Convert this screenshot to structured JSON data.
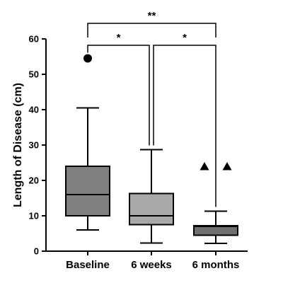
{
  "chart_data": {
    "type": "box",
    "ylabel": "Length of Disease (cm)",
    "ylim": [
      0,
      60
    ],
    "yticks": [
      0,
      10,
      20,
      30,
      40,
      50,
      60
    ],
    "categories": [
      "Baseline",
      "6 weeks",
      "6 months"
    ],
    "colors": [
      "#808080",
      "#a9a9aa",
      "#6f6f6f"
    ],
    "boxes": [
      {
        "category": "Baseline",
        "whisker_low": 6,
        "q1": 10,
        "median": 16,
        "q3": 24,
        "whisker_high": 40.5,
        "outliers": [
          54.5
        ],
        "outlier_marker": "circle"
      },
      {
        "category": "6 weeks",
        "whisker_low": 2.3,
        "q1": 7.5,
        "median": 10,
        "q3": 16.3,
        "whisker_high": 28.7,
        "outliers": [],
        "outlier_marker": "circle"
      },
      {
        "category": "6 months",
        "whisker_low": 2.2,
        "q1": 4.5,
        "median": 7,
        "q3": 7.2,
        "whisker_high": 11.3,
        "outliers": [
          24
        ],
        "outlier_marker": "triangle"
      }
    ],
    "significance": [
      {
        "from": "Baseline",
        "to": "6 months",
        "label": "**",
        "level": 2
      },
      {
        "from": "Baseline",
        "to": "6 weeks",
        "label": "*",
        "level": 1
      },
      {
        "from": "6 weeks",
        "to": "6 months",
        "label": "*",
        "level": 1
      }
    ]
  }
}
